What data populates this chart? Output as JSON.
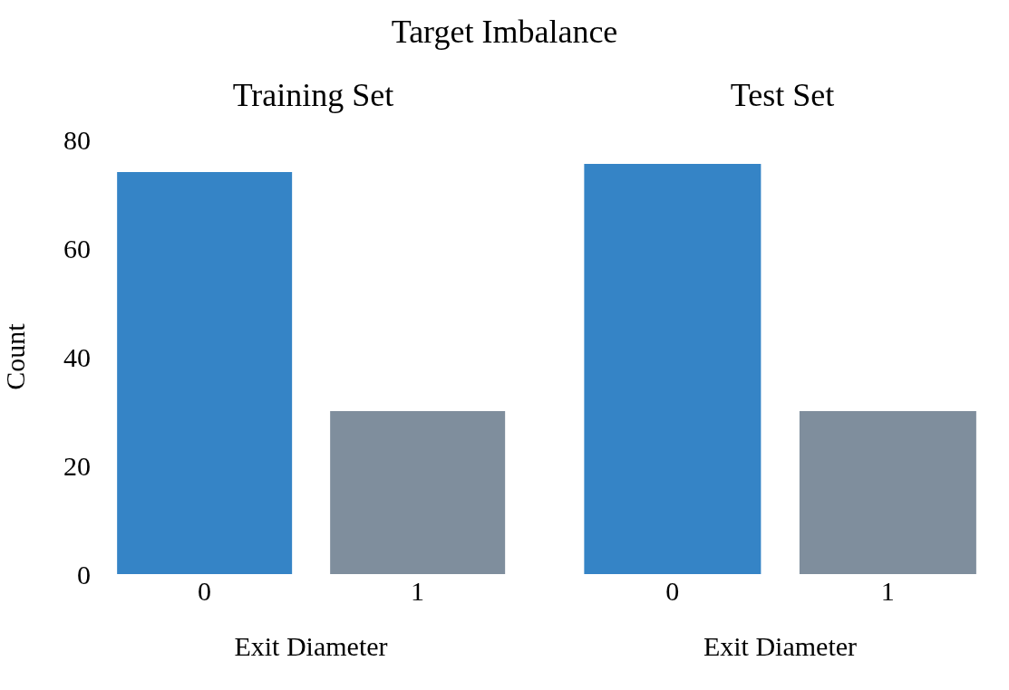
{
  "chart_data": [
    {
      "type": "bar",
      "title": "Training Set",
      "annotations": [
        "Target Imbalance"
      ],
      "xlabel": "Exit Diameter",
      "ylabel": "Count",
      "categories": [
        "0",
        "1"
      ],
      "values": [
        74,
        30
      ],
      "colors": [
        "#3584c6",
        "#7f8e9d"
      ],
      "ylim": [
        0,
        80
      ],
      "yticks": [
        0,
        20,
        40,
        60,
        80
      ],
      "grid": false
    },
    {
      "type": "bar",
      "title": "Test Set",
      "xlabel": "Exit Diameter",
      "categories": [
        "0",
        "1"
      ],
      "values": [
        75.5,
        30
      ],
      "colors": [
        "#3584c6",
        "#7f8e9d"
      ],
      "ylim": [
        0,
        80
      ],
      "yticks": [
        0,
        20,
        40,
        60,
        80
      ],
      "grid": false,
      "tick_labels": "x"
    }
  ]
}
